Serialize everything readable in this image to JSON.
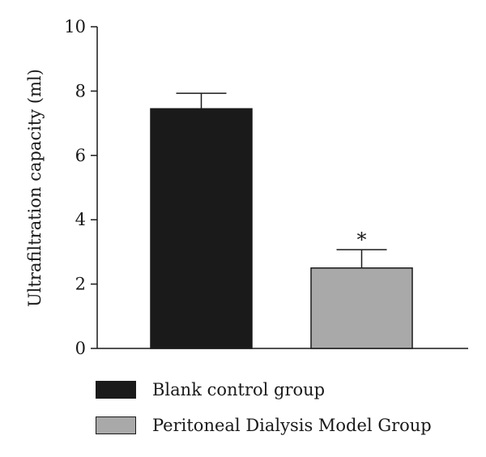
{
  "chart_data": {
    "type": "bar",
    "categories": [
      "Blank control group",
      "Peritoneal Dialysis Model Group"
    ],
    "values": [
      7.45,
      2.5
    ],
    "errors": [
      0.48,
      0.57
    ],
    "colors": [
      "#1a1a1a",
      "#a9a9a9"
    ],
    "ylabel": "Ultrafiltration capacity (ml)",
    "ylim": [
      0,
      10
    ],
    "yticks": [
      0,
      2,
      4,
      6,
      8,
      10
    ],
    "significance": [
      "",
      "*"
    ],
    "grid": false,
    "legend": {
      "position": "bottom",
      "entries": [
        "Blank control group",
        "Peritoneal Dialysis Model Group"
      ]
    }
  }
}
